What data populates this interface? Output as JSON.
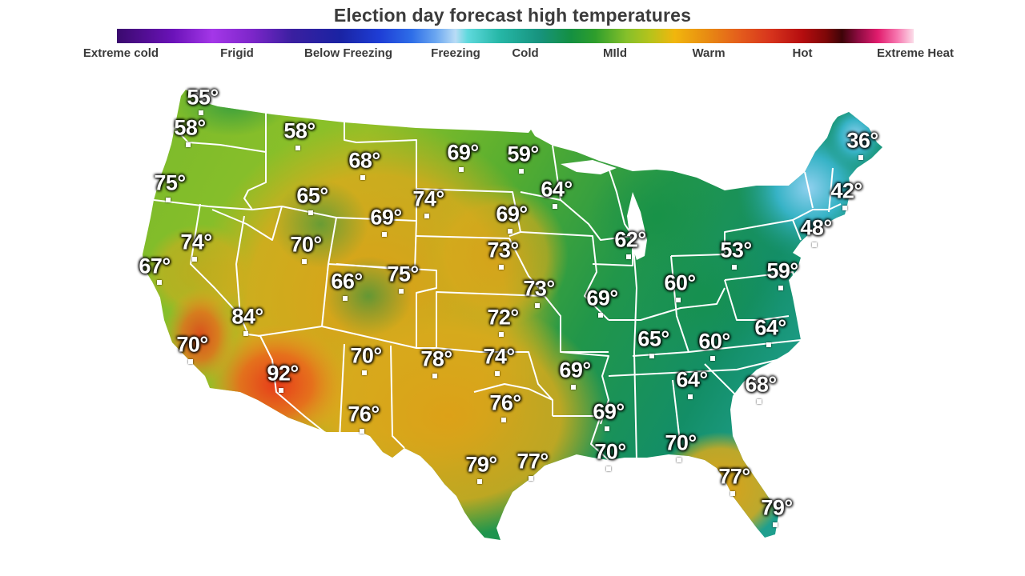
{
  "title": "Election day forecast high temperatures",
  "legend": {
    "labels": [
      "Extreme cold",
      "Frigid",
      "Below Freezing",
      "Freezing",
      "Cold",
      "MIld",
      "Warm",
      "Hot",
      "Extreme Heat"
    ]
  },
  "colors": {
    "cold": "#2fb5c9",
    "cool": "#139a5e",
    "mild": "#6db52c",
    "warm": "#e0a514",
    "hot": "#e2461b",
    "border": "#ffffff"
  },
  "temperatures": [
    {
      "id": "seattle",
      "label": "55°"
    },
    {
      "id": "portland",
      "label": "58°"
    },
    {
      "id": "missoula",
      "label": "58°"
    },
    {
      "id": "billings",
      "label": "68°"
    },
    {
      "id": "bismarck",
      "label": "69°"
    },
    {
      "id": "duluth",
      "label": "59°"
    },
    {
      "id": "caribou",
      "label": "36°"
    },
    {
      "id": "medford",
      "label": "75°"
    },
    {
      "id": "boise",
      "label": "65°"
    },
    {
      "id": "casper",
      "label": "69°"
    },
    {
      "id": "rapid-city",
      "label": "74°"
    },
    {
      "id": "sioux-falls",
      "label": "69°"
    },
    {
      "id": "minneapolis",
      "label": "64°"
    },
    {
      "id": "boston",
      "label": "42°"
    },
    {
      "id": "reno",
      "label": "74°"
    },
    {
      "id": "san-francisco",
      "label": "67°"
    },
    {
      "id": "salt-lake-city",
      "label": "70°"
    },
    {
      "id": "north-platte",
      "label": "75°"
    },
    {
      "id": "omaha",
      "label": "73°"
    },
    {
      "id": "chicago",
      "label": "62°"
    },
    {
      "id": "new-york",
      "label": "48°"
    },
    {
      "id": "pittsburgh",
      "label": "53°"
    },
    {
      "id": "washington-dc",
      "label": "59°"
    },
    {
      "id": "grand-junction",
      "label": "66°"
    },
    {
      "id": "kansas-city",
      "label": "73°"
    },
    {
      "id": "st-louis",
      "label": "69°"
    },
    {
      "id": "columbus",
      "label": "60°"
    },
    {
      "id": "las-vegas",
      "label": "84°"
    },
    {
      "id": "wichita",
      "label": "72°"
    },
    {
      "id": "los-angeles",
      "label": "70°"
    },
    {
      "id": "albuquerque",
      "label": "70°"
    },
    {
      "id": "amarillo",
      "label": "78°"
    },
    {
      "id": "oklahoma-city",
      "label": "74°"
    },
    {
      "id": "nashville",
      "label": "65°"
    },
    {
      "id": "knoxville",
      "label": "60°"
    },
    {
      "id": "raleigh",
      "label": "64°"
    },
    {
      "id": "phoenix",
      "label": "92°"
    },
    {
      "id": "little-rock",
      "label": "69°"
    },
    {
      "id": "atlanta",
      "label": "64°"
    },
    {
      "id": "charleston",
      "label": "68°"
    },
    {
      "id": "el-paso",
      "label": "76°"
    },
    {
      "id": "dallas",
      "label": "76°"
    },
    {
      "id": "jackson",
      "label": "69°"
    },
    {
      "id": "san-antonio",
      "label": "79°"
    },
    {
      "id": "houston",
      "label": "77°"
    },
    {
      "id": "new-orleans",
      "label": "70°"
    },
    {
      "id": "tallahassee",
      "label": "70°"
    },
    {
      "id": "orlando",
      "label": "77°"
    },
    {
      "id": "miami",
      "label": "79°"
    }
  ]
}
